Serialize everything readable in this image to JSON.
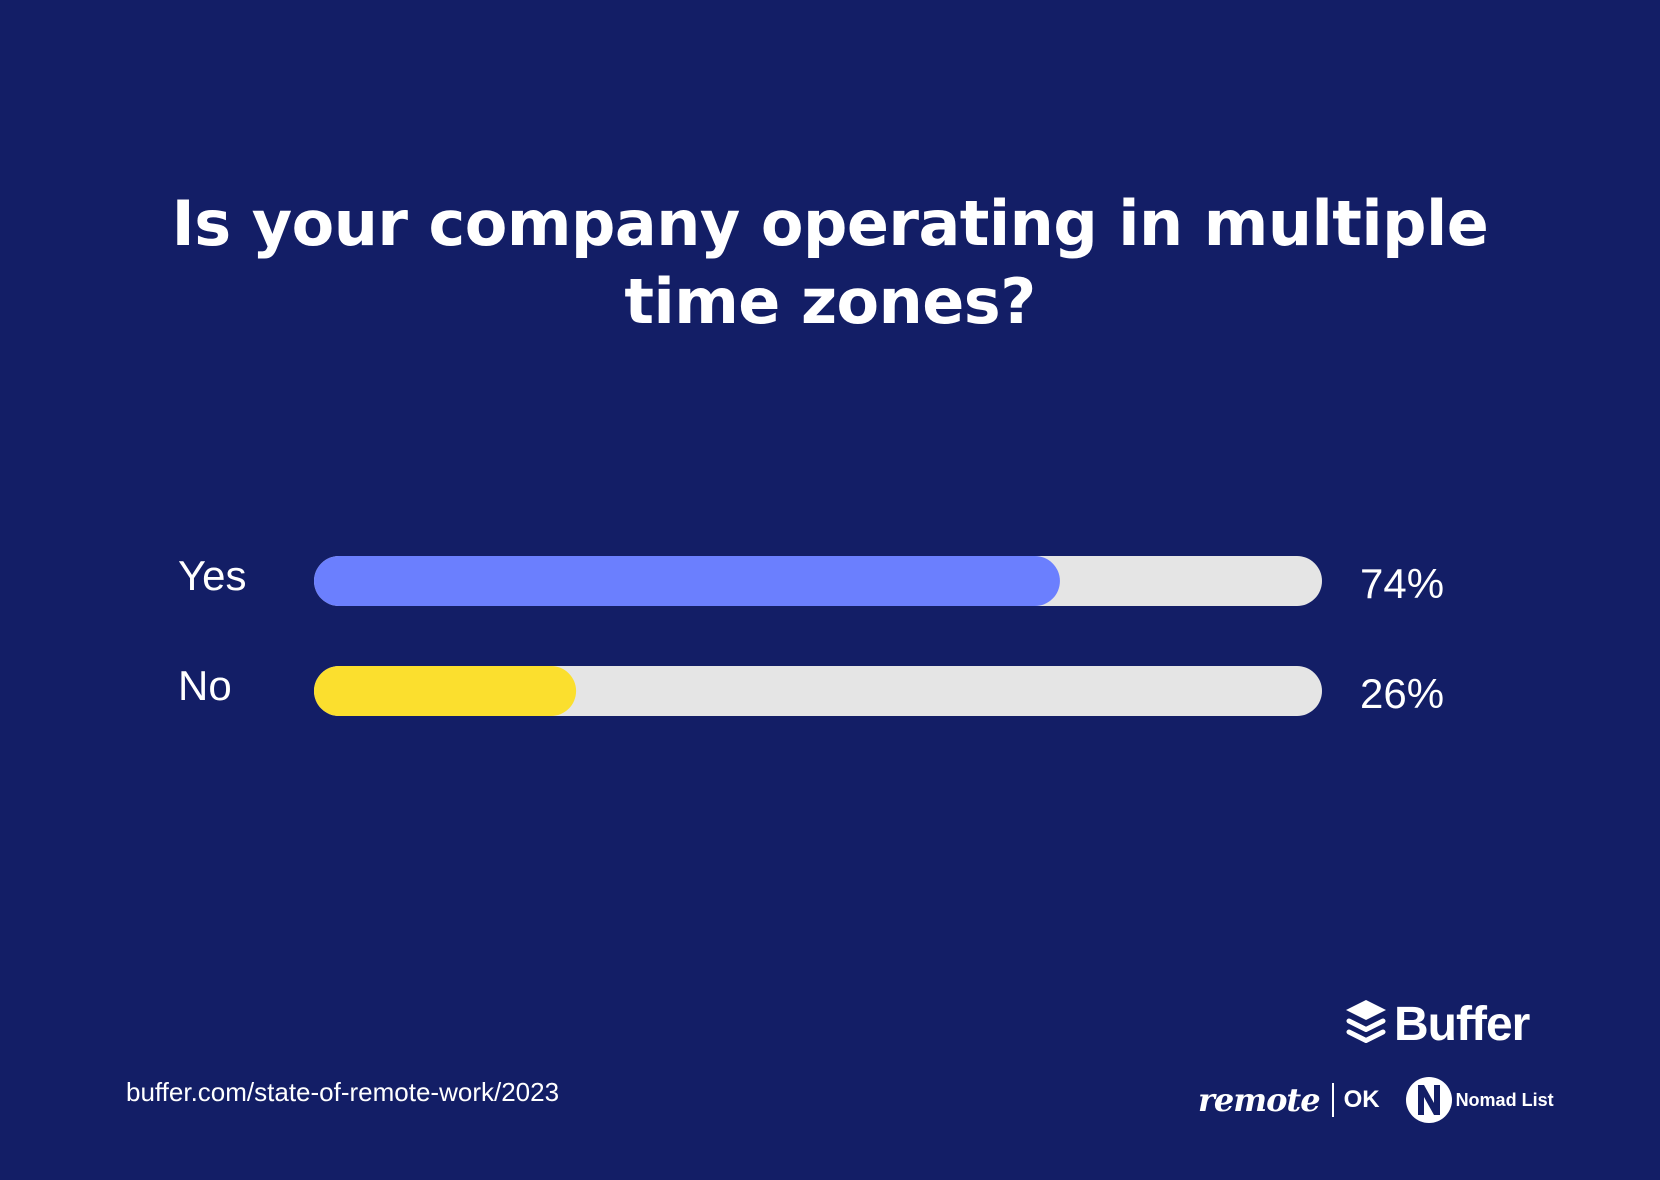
{
  "title": {
    "line1": "Is your company operating in multiple",
    "line2": "time zones?"
  },
  "chart_data": {
    "type": "bar",
    "orientation": "horizontal",
    "categories": [
      "Yes",
      "No"
    ],
    "values": [
      74,
      26
    ],
    "value_labels": [
      "74%",
      "26%"
    ],
    "unit": "%",
    "xlim": [
      0,
      100
    ],
    "colors": [
      "#6b7ffe",
      "#fbdf2e"
    ],
    "track_color": "#e5e5e5",
    "background": "#131e66"
  },
  "footer": {
    "source": "buffer.com/state-of-remote-work/2023",
    "logos": {
      "buffer": "Buffer",
      "remote": "remote",
      "ok": "OK",
      "nomad_list": "Nomad List"
    }
  }
}
